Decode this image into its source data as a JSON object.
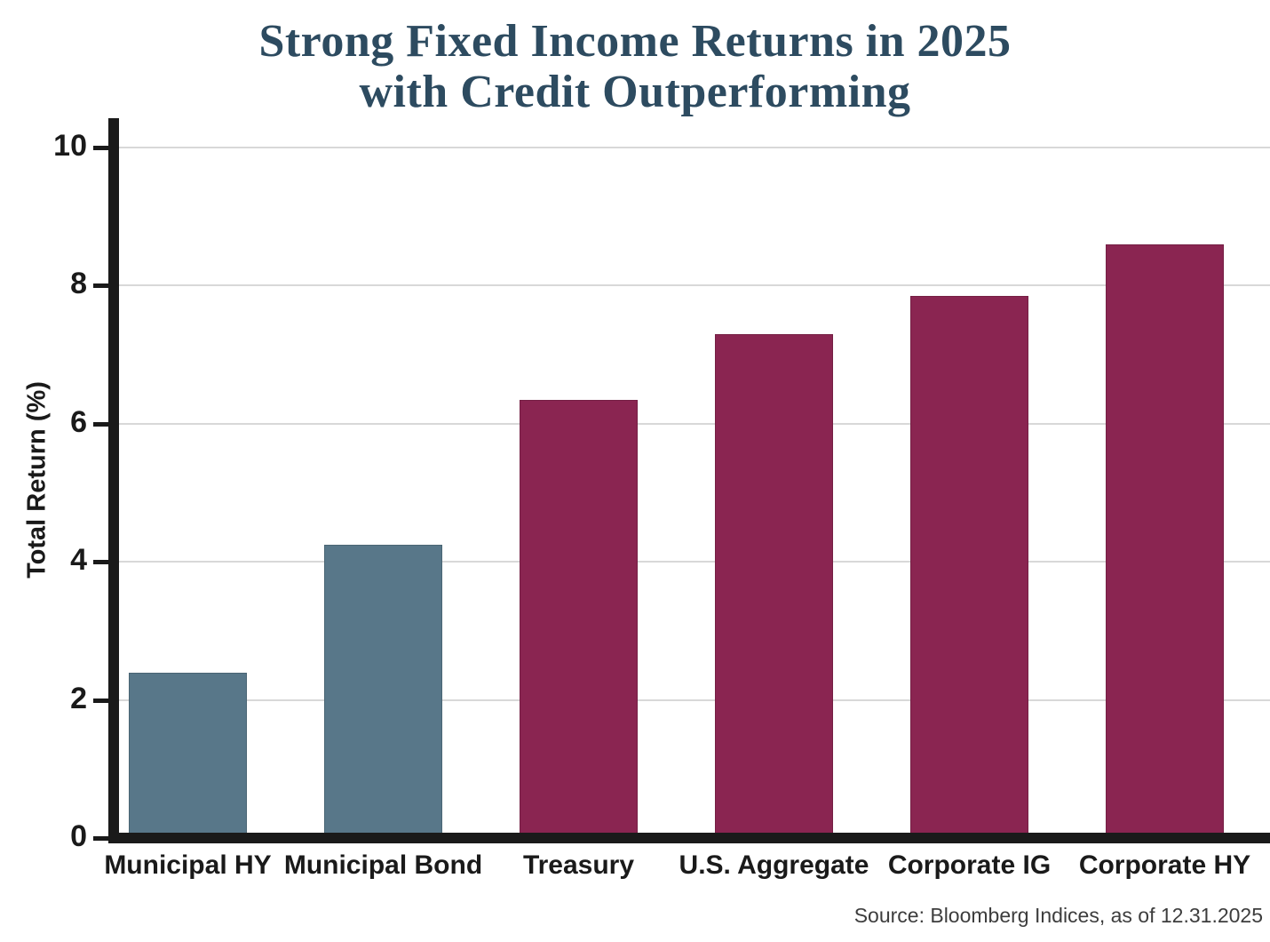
{
  "figure": {
    "background": "#ffffff"
  },
  "colors": {
    "municipal_bar": "#587789",
    "credit_bar": "#8a2551",
    "title_text": "#2d4b60",
    "axis_line": "#1a1a1a",
    "axis_text": "#1a1a1a",
    "gridline": "#d8d8d8",
    "source_text": "#3d3d3d"
  },
  "chart_data": {
    "type": "bar",
    "title": "Strong Fixed Income Returns in 2025 with Credit Outperforming",
    "title_lines": [
      "Strong Fixed Income Returns in 2025",
      "with Credit Outperforming"
    ],
    "categories": [
      "Municipal HY",
      "Municipal Bond",
      "Treasury",
      "U.S. Aggregate",
      "Corporate IG",
      "Corporate HY"
    ],
    "values": [
      2.4,
      4.25,
      6.35,
      7.3,
      7.85,
      8.6
    ],
    "bar_colors": [
      "#587789",
      "#587789",
      "#8a2551",
      "#8a2551",
      "#8a2551",
      "#8a2551"
    ],
    "xlabel": "",
    "ylabel": "Total Return (%)",
    "ylim": [
      0,
      10
    ],
    "yticks": [
      0,
      2,
      4,
      6,
      8,
      10
    ],
    "grid": true,
    "legend_position": "none",
    "source": "Source: Bloomberg Indices, as of 12.31.2025"
  }
}
